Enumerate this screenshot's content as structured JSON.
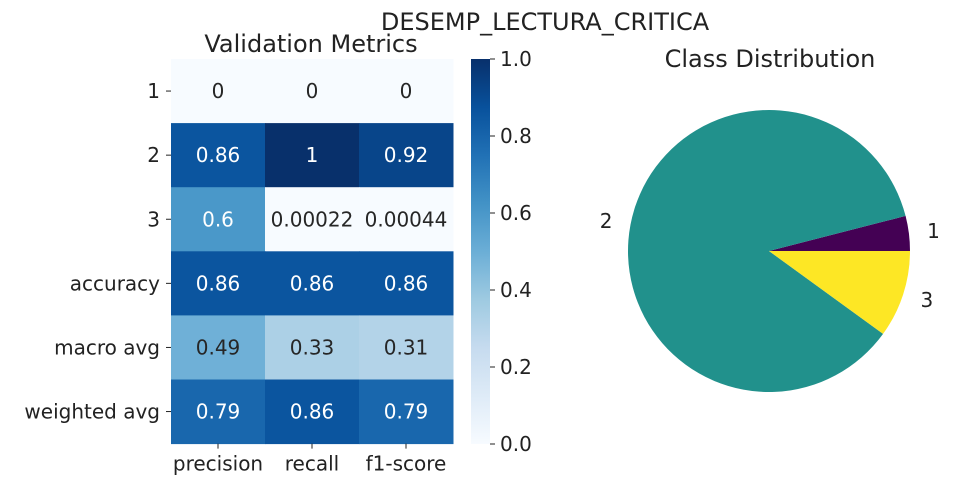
{
  "figure_title": "DESEMP_LECTURA_CRITICA",
  "chart_data": [
    {
      "type": "heatmap",
      "title": "Validation Metrics",
      "x_labels": [
        "precision",
        "recall",
        "f1-score"
      ],
      "y_labels": [
        "1",
        "2",
        "3",
        "accuracy",
        "macro avg",
        "weighted avg"
      ],
      "values": [
        [
          0,
          0,
          0
        ],
        [
          0.86,
          1,
          0.92
        ],
        [
          0.6,
          0.00022,
          0.00044
        ],
        [
          0.86,
          0.86,
          0.86
        ],
        [
          0.49,
          0.33,
          0.31
        ],
        [
          0.79,
          0.86,
          0.79
        ]
      ],
      "annotations": [
        [
          "0",
          "0",
          "0"
        ],
        [
          "0.86",
          "1",
          "0.92"
        ],
        [
          "0.6",
          "0.00022",
          "0.00044"
        ],
        [
          "0.86",
          "0.86",
          "0.86"
        ],
        [
          "0.49",
          "0.33",
          "0.31"
        ],
        [
          "0.79",
          "0.86",
          "0.79"
        ]
      ],
      "colormap": "Blues",
      "vmin": 0,
      "vmax": 1,
      "colorbar_ticks": [
        "0.0",
        "0.2",
        "0.4",
        "0.6",
        "0.8",
        "1.0"
      ]
    },
    {
      "type": "pie",
      "title": "Class Distribution",
      "labels": [
        "1",
        "2",
        "3"
      ],
      "values": [
        4,
        86,
        10
      ],
      "colors": [
        "#440154",
        "#21918c",
        "#fde725"
      ]
    }
  ]
}
